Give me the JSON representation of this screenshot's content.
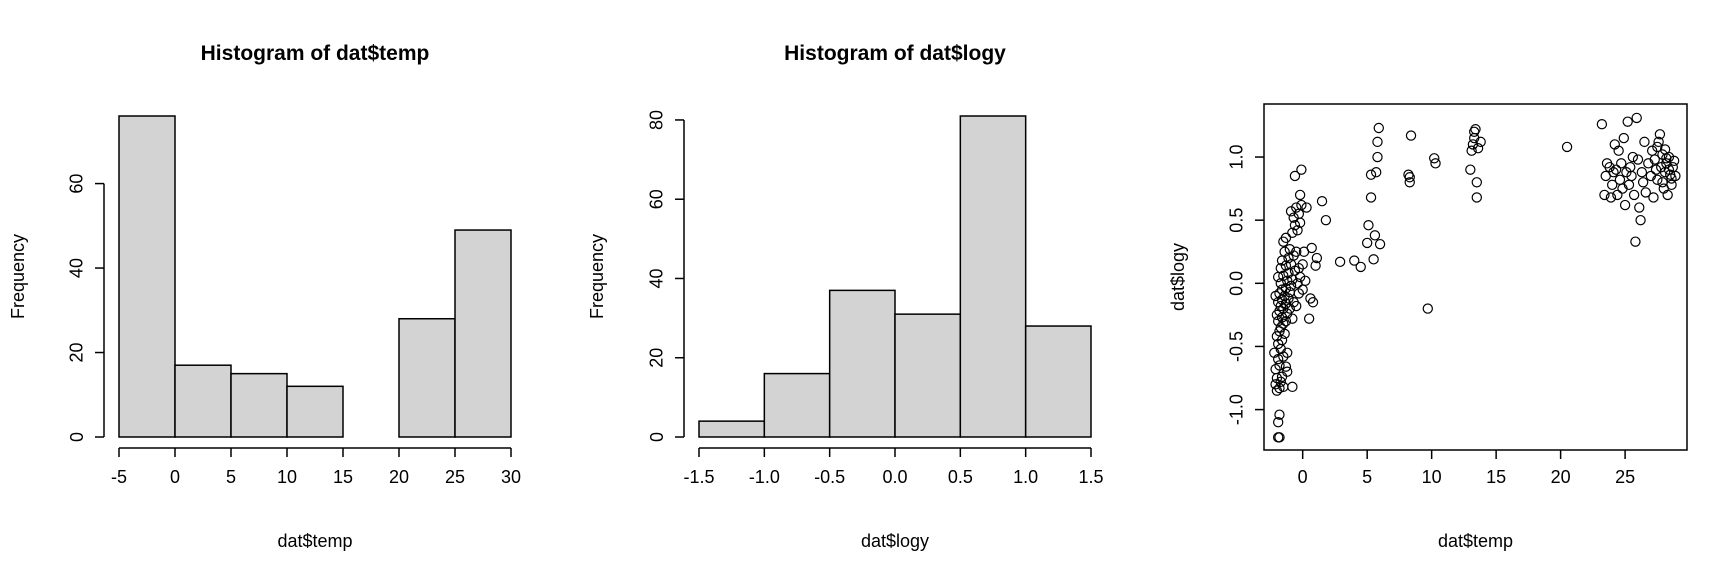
{
  "chart_data": [
    {
      "type": "bar",
      "title": "Histogram of dat$temp",
      "xlabel": "dat$temp",
      "ylabel": "Frequency",
      "bins": [
        [
          -5,
          0
        ],
        [
          0,
          5
        ],
        [
          5,
          10
        ],
        [
          10,
          15
        ],
        [
          15,
          20
        ],
        [
          20,
          25
        ],
        [
          25,
          30
        ]
      ],
      "values": [
        76,
        17,
        15,
        12,
        0,
        28,
        49
      ],
      "xlim": [
        -5,
        30
      ],
      "ylim": [
        0,
        76
      ],
      "xticks": [
        -5,
        0,
        5,
        10,
        15,
        20,
        25,
        30
      ],
      "yticks": [
        0,
        20,
        40,
        60
      ],
      "bar_color": "#d3d3d3"
    },
    {
      "type": "bar",
      "title": "Histogram of dat$logy",
      "xlabel": "dat$logy",
      "ylabel": "Frequency",
      "bins": [
        [
          -1.5,
          -1.0
        ],
        [
          -1.0,
          -0.5
        ],
        [
          -0.5,
          0.0
        ],
        [
          0.0,
          0.5
        ],
        [
          0.5,
          1.0
        ],
        [
          1.0,
          1.5
        ]
      ],
      "values": [
        4,
        16,
        37,
        31,
        81,
        28
      ],
      "xlim": [
        -1.5,
        1.5
      ],
      "ylim": [
        0,
        81
      ],
      "xticks": [
        -1.5,
        -1.0,
        -0.5,
        0.0,
        0.5,
        1.0,
        1.5
      ],
      "xtick_labels": [
        "-1.5",
        "-1.0",
        "-0.5",
        "0.0",
        "0.5",
        "1.0",
        "1.5"
      ],
      "yticks": [
        0,
        20,
        40,
        60,
        80
      ],
      "bar_color": "#d3d3d3"
    },
    {
      "type": "scatter",
      "title": "",
      "xlabel": "dat$temp",
      "ylabel": "dat$logy",
      "xlim": [
        -3.0,
        29.8
      ],
      "ylim": [
        -1.32,
        1.42
      ],
      "xticks": [
        0,
        5,
        10,
        15,
        20,
        25
      ],
      "yticks": [
        -1.0,
        -0.5,
        0.0,
        0.5,
        1.0
      ],
      "ytick_labels": [
        "-1.0",
        "-0.5",
        "0.0",
        "0.5",
        "1.0"
      ],
      "marker": "open-circle",
      "points": [
        [
          -1.9,
          -1.22
        ],
        [
          -1.8,
          -1.22
        ],
        [
          -1.9,
          -1.1
        ],
        [
          -1.8,
          -1.04
        ],
        [
          -2.0,
          -0.85
        ],
        [
          -1.8,
          -0.83
        ],
        [
          -1.5,
          -0.82
        ],
        [
          -2.1,
          -0.8
        ],
        [
          -1.7,
          -0.78
        ],
        [
          -0.8,
          -0.82
        ],
        [
          -2.0,
          -0.75
        ],
        [
          -1.6,
          -0.74
        ],
        [
          -1.2,
          -0.7
        ],
        [
          -2.1,
          -0.68
        ],
        [
          -1.8,
          -0.65
        ],
        [
          -1.3,
          -0.66
        ],
        [
          -1.9,
          -0.6
        ],
        [
          -1.5,
          -0.58
        ],
        [
          -2.2,
          -0.55
        ],
        [
          -1.7,
          -0.52
        ],
        [
          -1.2,
          -0.55
        ],
        [
          -1.9,
          -0.48
        ],
        [
          -1.6,
          -0.45
        ],
        [
          -2.0,
          -0.42
        ],
        [
          -1.4,
          -0.4
        ],
        [
          -1.8,
          -0.38
        ],
        [
          -1.7,
          -0.35
        ],
        [
          -1.5,
          -0.32
        ],
        [
          -1.9,
          -0.3
        ],
        [
          -1.3,
          -0.3
        ],
        [
          -0.8,
          -0.28
        ],
        [
          -1.6,
          -0.27
        ],
        [
          -2.0,
          -0.25
        ],
        [
          -1.2,
          -0.24
        ],
        [
          -1.8,
          -0.22
        ],
        [
          -1.5,
          -0.2
        ],
        [
          -1.0,
          -0.2
        ],
        [
          -1.7,
          -0.18
        ],
        [
          -1.3,
          -0.16
        ],
        [
          -1.9,
          -0.15
        ],
        [
          -1.6,
          -0.13
        ],
        [
          -1.1,
          -0.12
        ],
        [
          -2.1,
          -0.1
        ],
        [
          -1.4,
          -0.1
        ],
        [
          -1.8,
          -0.08
        ],
        [
          -1.0,
          -0.07
        ],
        [
          -1.6,
          -0.05
        ],
        [
          -1.3,
          -0.04
        ],
        [
          -0.7,
          -0.15
        ],
        [
          -0.5,
          -0.18
        ],
        [
          -0.9,
          -0.02
        ],
        [
          -1.7,
          0.0
        ],
        [
          -1.2,
          0.02
        ],
        [
          -0.8,
          0.03
        ],
        [
          -0.4,
          0.0
        ],
        [
          -1.9,
          0.05
        ],
        [
          -1.5,
          0.06
        ],
        [
          -1.1,
          0.08
        ],
        [
          -0.6,
          0.1
        ],
        [
          -0.2,
          0.05
        ],
        [
          -1.7,
          0.12
        ],
        [
          -1.3,
          0.14
        ],
        [
          -0.9,
          0.15
        ],
        [
          -0.3,
          0.12
        ],
        [
          -1.6,
          0.18
        ],
        [
          -1.1,
          0.2
        ],
        [
          -0.7,
          0.22
        ],
        [
          -1.4,
          0.25
        ],
        [
          -1.0,
          0.27
        ],
        [
          -0.5,
          0.25
        ],
        [
          -1.5,
          0.33
        ],
        [
          -1.3,
          0.36
        ],
        [
          -0.8,
          0.4
        ],
        [
          -0.4,
          0.42
        ],
        [
          -0.6,
          0.46
        ],
        [
          -0.2,
          0.48
        ],
        [
          -0.7,
          0.52
        ],
        [
          -0.3,
          0.55
        ],
        [
          -0.9,
          0.57
        ],
        [
          -0.5,
          0.6
        ],
        [
          -0.1,
          0.62
        ],
        [
          -0.2,
          0.7
        ],
        [
          -0.6,
          0.85
        ],
        [
          -0.1,
          0.9
        ],
        [
          -0.3,
          -0.08
        ],
        [
          0.0,
          -0.05
        ],
        [
          0.0,
          0.15
        ],
        [
          0.1,
          0.25
        ],
        [
          0.2,
          0.02
        ],
        [
          0.3,
          0.6
        ],
        [
          0.5,
          -0.28
        ],
        [
          0.6,
          -0.12
        ],
        [
          0.7,
          0.28
        ],
        [
          0.8,
          -0.15
        ],
        [
          1.0,
          0.14
        ],
        [
          1.1,
          0.2
        ],
        [
          1.5,
          0.65
        ],
        [
          1.8,
          0.5
        ],
        [
          2.9,
          0.17
        ],
        [
          4.0,
          0.18
        ],
        [
          4.5,
          0.13
        ],
        [
          5.0,
          0.32
        ],
        [
          5.1,
          0.46
        ],
        [
          5.3,
          0.68
        ],
        [
          5.3,
          0.86
        ],
        [
          5.5,
          0.19
        ],
        [
          5.6,
          0.38
        ],
        [
          5.7,
          0.88
        ],
        [
          5.8,
          1.0
        ],
        [
          5.8,
          1.12
        ],
        [
          5.9,
          1.23
        ],
        [
          6.0,
          0.31
        ],
        [
          8.2,
          0.86
        ],
        [
          8.3,
          0.84
        ],
        [
          8.3,
          0.8
        ],
        [
          8.4,
          1.17
        ],
        [
          9.7,
          -0.2
        ],
        [
          10.2,
          0.99
        ],
        [
          10.3,
          0.95
        ],
        [
          13.0,
          0.9
        ],
        [
          13.1,
          1.05
        ],
        [
          13.2,
          1.1
        ],
        [
          13.3,
          1.15
        ],
        [
          13.3,
          1.2
        ],
        [
          13.4,
          1.22
        ],
        [
          13.5,
          0.68
        ],
        [
          13.5,
          0.8
        ],
        [
          13.6,
          1.07
        ],
        [
          13.8,
          1.12
        ],
        [
          20.5,
          1.08
        ],
        [
          23.2,
          1.26
        ],
        [
          23.4,
          0.7
        ],
        [
          23.5,
          0.85
        ],
        [
          23.6,
          0.95
        ],
        [
          23.8,
          0.92
        ],
        [
          23.9,
          0.68
        ],
        [
          24.0,
          0.78
        ],
        [
          24.1,
          0.88
        ],
        [
          24.2,
          1.1
        ],
        [
          24.3,
          0.9
        ],
        [
          24.4,
          0.7
        ],
        [
          24.5,
          1.05
        ],
        [
          24.6,
          0.82
        ],
        [
          24.7,
          0.95
        ],
        [
          24.8,
          0.75
        ],
        [
          24.9,
          1.15
        ],
        [
          25.0,
          0.62
        ],
        [
          25.1,
          0.88
        ],
        [
          25.2,
          1.28
        ],
        [
          25.3,
          0.78
        ],
        [
          25.4,
          0.92
        ],
        [
          25.5,
          0.85
        ],
        [
          25.6,
          1.0
        ],
        [
          25.7,
          0.7
        ],
        [
          25.8,
          0.33
        ],
        [
          25.9,
          1.31
        ],
        [
          26.0,
          0.98
        ],
        [
          26.1,
          0.6
        ],
        [
          26.2,
          0.5
        ],
        [
          26.3,
          0.88
        ],
        [
          26.4,
          0.8
        ],
        [
          26.5,
          1.12
        ],
        [
          26.6,
          0.72
        ],
        [
          26.8,
          0.95
        ],
        [
          27.0,
          0.85
        ],
        [
          27.1,
          1.05
        ],
        [
          27.2,
          0.68
        ],
        [
          27.3,
          0.98
        ],
        [
          27.4,
          0.9
        ],
        [
          27.5,
          0.82
        ],
        [
          27.6,
          1.12
        ],
        [
          27.7,
          1.18
        ],
        [
          27.8,
          0.92
        ],
        [
          27.9,
          1.02
        ],
        [
          28.0,
          0.75
        ],
        [
          28.1,
          0.88
        ],
        [
          28.2,
          0.95
        ],
        [
          28.3,
          0.7
        ],
        [
          28.4,
          1.0
        ],
        [
          28.5,
          0.86
        ],
        [
          28.6,
          0.78
        ],
        [
          28.7,
          0.92
        ],
        [
          28.8,
          0.97
        ],
        [
          28.9,
          0.85
        ],
        [
          27.5,
          1.08
        ],
        [
          27.9,
          0.8
        ],
        [
          28.1,
          1.06
        ],
        [
          28.4,
          0.9
        ],
        [
          28.6,
          0.83
        ],
        [
          28.2,
          0.99
        ]
      ]
    }
  ]
}
